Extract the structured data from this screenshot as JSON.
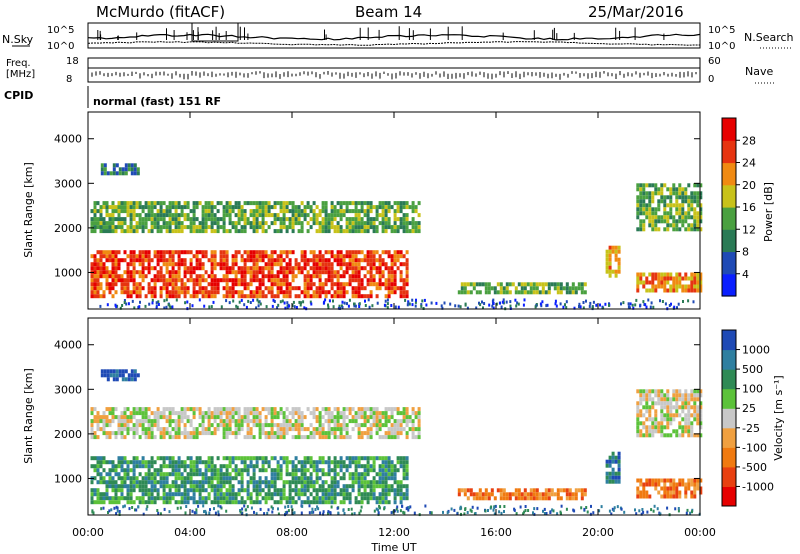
{
  "header": {
    "station": "McMurdo (fitACF)",
    "beam": "Beam 14",
    "date": "25/Mar/2016"
  },
  "info_panels": {
    "nsky_label": "N.Sky",
    "nsearch_label": "N.Search",
    "nsky_scale_top": "10^5",
    "nsky_scale_bottom": "10^0",
    "nsearch_scale_top": "10^5",
    "nsearch_scale_bottom": "10^0",
    "freq_label_1": "Freq.",
    "freq_label_2": "[MHz]",
    "freq_top": "18",
    "freq_bottom": "8",
    "nave_label": "Nave",
    "nave_top": "60",
    "nave_bottom": "0",
    "cpid_label": "CPID",
    "cpid_text": "normal (fast) 151 RF"
  },
  "chart_data": [
    {
      "type": "heatmap",
      "name": "Power",
      "ylabel": "Slant Range [km]",
      "xlabel": "Time UT",
      "x_ticks": [
        "00:00",
        "04:00",
        "08:00",
        "12:00",
        "16:00",
        "20:00",
        "00:00"
      ],
      "y_ticks": [
        1000,
        2000,
        3000,
        4000
      ],
      "ylim": [
        180,
        4600
      ],
      "xlim_hours": [
        0,
        24
      ],
      "colorbar_label": "Power [dB]",
      "colorbar_ticks": [
        "4",
        "8",
        "12",
        "16",
        "20",
        "24",
        "28"
      ],
      "colorbar_colors": [
        "#0a1fff",
        "#1f4ab5",
        "#2a7a55",
        "#4aa040",
        "#c8c21a",
        "#f08a12",
        "#e63410",
        "#e60000"
      ],
      "regions": [
        {
          "t0": 0.1,
          "t1": 12.5,
          "r0": 500,
          "r1": 1500,
          "level": 6
        },
        {
          "t0": 0.1,
          "t1": 13.0,
          "r0": 1900,
          "r1": 2600,
          "level": 3
        },
        {
          "t0": 0.5,
          "t1": 2.0,
          "r0": 3250,
          "r1": 3450,
          "level": 2
        },
        {
          "t0": 14.5,
          "t1": 19.5,
          "r0": 580,
          "r1": 780,
          "level": 3
        },
        {
          "t0": 20.3,
          "t1": 20.8,
          "r0": 900,
          "r1": 1600,
          "level": 5
        },
        {
          "t0": 21.5,
          "t1": 24.0,
          "r0": 600,
          "r1": 1000,
          "level": 5
        },
        {
          "t0": 21.5,
          "t1": 24.0,
          "r0": 2000,
          "r1": 3000,
          "level": 3
        }
      ]
    },
    {
      "type": "heatmap",
      "name": "Velocity",
      "ylabel": "Slant Range [km]",
      "xlabel": "Time UT",
      "x_ticks": [
        "00:00",
        "04:00",
        "08:00",
        "12:00",
        "16:00",
        "20:00",
        "00:00"
      ],
      "y_ticks": [
        1000,
        2000,
        3000,
        4000
      ],
      "ylim": [
        180,
        4600
      ],
      "xlim_hours": [
        0,
        24
      ],
      "colorbar_label": "Velocity [m s⁻¹]",
      "colorbar_ticks": [
        "1000",
        "500",
        "100",
        "25",
        "-25",
        "-100",
        "-500",
        "-1000"
      ],
      "colorbar_colors": [
        "#1f4ab5",
        "#2f7fa0",
        "#2f8a55",
        "#5cc23a",
        "#c8c8c8",
        "#f0a040",
        "#f07a10",
        "#e84010",
        "#e60000"
      ],
      "regions": [
        {
          "t0": 0.1,
          "t1": 12.5,
          "r0": 500,
          "r1": 1500,
          "level": 2
        },
        {
          "t0": 0.1,
          "t1": 13.0,
          "r0": 1900,
          "r1": 2600,
          "level": 4
        },
        {
          "t0": 0.5,
          "t1": 2.0,
          "r0": 3250,
          "r1": 3450,
          "level": 0
        },
        {
          "t0": 14.5,
          "t1": 19.5,
          "r0": 580,
          "r1": 780,
          "level": 6
        },
        {
          "t0": 20.3,
          "t1": 20.8,
          "r0": 900,
          "r1": 1600,
          "level": 1
        },
        {
          "t0": 21.5,
          "t1": 24.0,
          "r0": 600,
          "r1": 1000,
          "level": 6
        },
        {
          "t0": 21.5,
          "t1": 24.0,
          "r0": 2000,
          "r1": 3000,
          "level": 4
        }
      ]
    }
  ]
}
